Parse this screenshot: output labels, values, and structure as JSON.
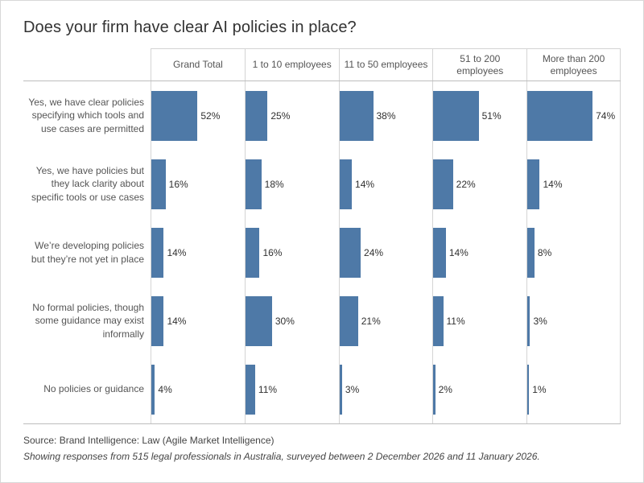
{
  "title": "Does your firm have clear AI policies in place?",
  "chart_data": {
    "type": "bar",
    "orientation": "horizontal",
    "title": "Does your firm have clear AI policies in place?",
    "columns": [
      "Grand Total",
      "1 to 10 employees",
      "11 to 50 employees",
      "51 to 200 employees",
      "More than 200 employees"
    ],
    "categories": [
      "Yes, we have clear policies specifying which tools and use cases are permitted",
      "Yes, we have policies but they lack clarity about specific tools or use cases",
      "We’re developing policies but they’re not yet in place",
      "No formal policies, though some guidance may exist informally",
      "No policies or guidance"
    ],
    "series": [
      {
        "name": "Grand Total",
        "values": [
          52,
          16,
          14,
          14,
          4
        ]
      },
      {
        "name": "1 to 10 employees",
        "values": [
          25,
          18,
          16,
          30,
          11
        ]
      },
      {
        "name": "11 to 50 employees",
        "values": [
          38,
          14,
          24,
          21,
          3
        ]
      },
      {
        "name": "51 to 200 employees",
        "values": [
          51,
          22,
          14,
          11,
          2
        ]
      },
      {
        "name": "More than 200 employees",
        "values": [
          74,
          14,
          8,
          3,
          1
        ]
      }
    ],
    "value_suffix": "%",
    "xlim": [
      0,
      105
    ],
    "bar_color": "#4e79a7",
    "legend": "none",
    "grid": "column-axis-lines-only"
  },
  "footer": {
    "source": "Source: Brand Intelligence: Law (Agile Market Intelligence)",
    "note": "Showing responses from 515 legal professionals in Australia, surveyed between 2 December 2026 and 11 January 2026."
  }
}
